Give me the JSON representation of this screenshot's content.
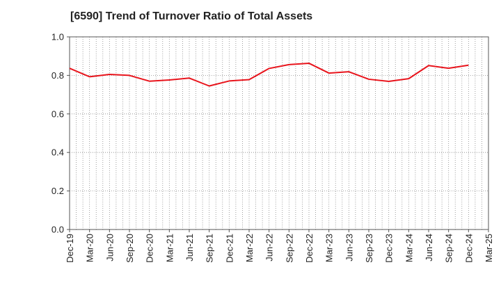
{
  "chart_data": {
    "type": "line",
    "title": "[6590]  Trend of Turnover Ratio of Total Assets",
    "xlabel": "",
    "ylabel": "",
    "x_tick_labels": [
      "Dec-19",
      "Mar-20",
      "Jun-20",
      "Sep-20",
      "Dec-20",
      "Mar-21",
      "Jun-21",
      "Sep-21",
      "Dec-21",
      "Mar-22",
      "Jun-22",
      "Sep-22",
      "Dec-22",
      "Mar-23",
      "Jun-23",
      "Sep-23",
      "Dec-23",
      "Mar-24",
      "Jun-24",
      "Sep-24",
      "Dec-24",
      "Mar-25"
    ],
    "y_tick_labels": [
      "0.0",
      "0.2",
      "0.4",
      "0.6",
      "0.8",
      "1.0"
    ],
    "ylim": [
      0.0,
      1.0
    ],
    "grid": true,
    "series": [
      {
        "color": "#e8141c",
        "x": [
          "Dec-19",
          "Mar-20",
          "Jun-20",
          "Sep-20",
          "Dec-20",
          "Mar-21",
          "Jun-21",
          "Sep-21",
          "Dec-21",
          "Mar-22",
          "Jun-22",
          "Sep-22",
          "Dec-22",
          "Mar-23",
          "Jun-23",
          "Sep-23",
          "Dec-23",
          "Mar-24",
          "Jun-24",
          "Sep-24",
          "Dec-24"
        ],
        "values": [
          0.837,
          0.793,
          0.805,
          0.8,
          0.77,
          0.776,
          0.786,
          0.745,
          0.771,
          0.778,
          0.836,
          0.856,
          0.863,
          0.812,
          0.819,
          0.78,
          0.769,
          0.783,
          0.851,
          0.837,
          0.853
        ]
      }
    ]
  }
}
